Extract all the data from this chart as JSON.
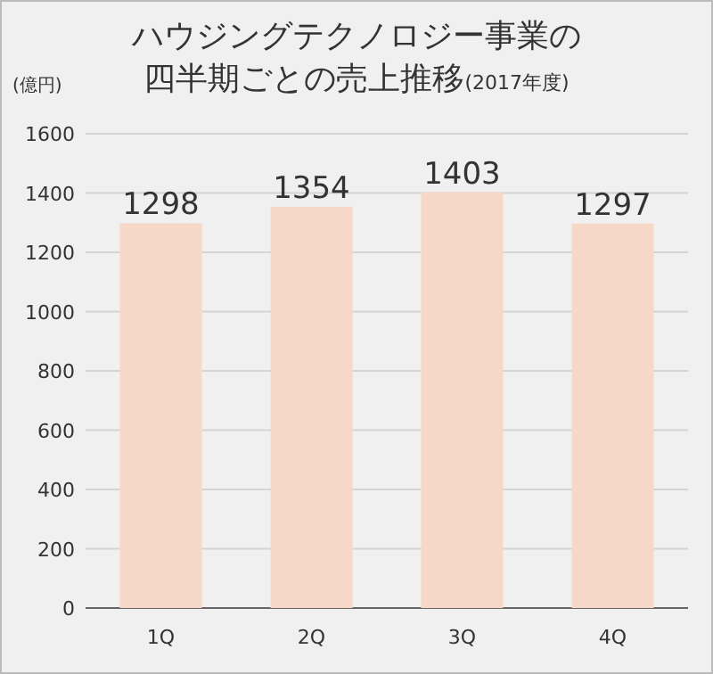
{
  "chart_data": {
    "type": "bar",
    "title": "ハウジングテクノロジー事業の四半期ごとの売上推移",
    "subtitle": "(2017年度)",
    "ylabel": "(億円)",
    "categories": [
      "1Q",
      "2Q",
      "3Q",
      "4Q"
    ],
    "values": [
      1298,
      1354,
      1403,
      1297
    ],
    "color": "#f7d7c8",
    "data_labels": true,
    "grid": "y",
    "ylim": [
      0,
      1600
    ],
    "yticks": [
      0,
      200,
      400,
      600,
      800,
      1000,
      1200,
      1400,
      1600
    ]
  }
}
